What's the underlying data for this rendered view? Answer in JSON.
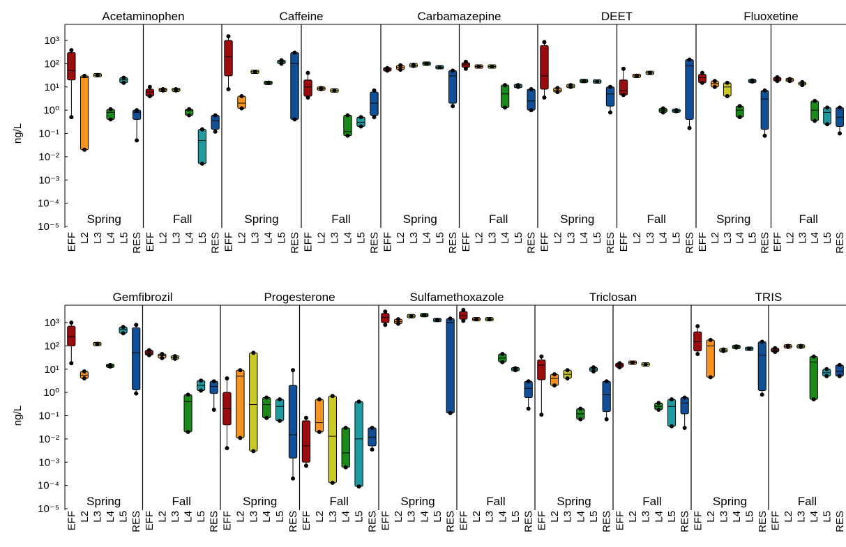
{
  "ylabel": "ng/L",
  "season_labels": [
    "Spring",
    "Fall"
  ],
  "site_labels": [
    "EFF",
    "L2",
    "L3",
    "L4",
    "L5",
    "RES"
  ],
  "yticks": [
    "10³",
    "10²",
    "10¹",
    "10⁰",
    "10⁻¹",
    "10⁻²",
    "10⁻³",
    "10⁻⁴",
    "10⁻⁵"
  ],
  "colors": {
    "EFF": "#9b0c0f",
    "L2": "#f59222",
    "L3": "#cbc92a",
    "L4": "#1c8a1b",
    "L5": "#1e9ba0",
    "RES": "#114f96"
  },
  "chart_data": {
    "type": "box",
    "yscale": "log",
    "ylim": [
      1e-05,
      3000
    ],
    "ylabel": "ng/L",
    "groups": [
      "Spring",
      "Fall"
    ],
    "categories": [
      "EFF",
      "L2",
      "L3",
      "L4",
      "L5",
      "RES"
    ],
    "compounds": [
      {
        "name": "Acetaminophen",
        "spring": [
          [
            0.5,
            20,
            50,
            300,
            380
          ],
          [
            0.02,
            0.02,
            25,
            30,
            30
          ],
          [
            32,
            32,
            32,
            32,
            32
          ],
          [
            0.4,
            0.4,
            0.8,
            1.1,
            1.1
          ],
          [
            15,
            15,
            20,
            25,
            25
          ],
          [
            0.05,
            0.4,
            0.8,
            1.0,
            1.0
          ]
        ],
        "fall": [
          [
            4,
            4,
            6,
            8,
            10
          ],
          [
            7,
            7,
            7.5,
            8,
            8
          ],
          [
            7,
            7,
            7.5,
            8,
            8
          ],
          [
            0.6,
            0.6,
            1.0,
            1.1,
            1.1
          ],
          [
            0.005,
            0.005,
            0.05,
            0.15,
            0.15
          ],
          [
            0.12,
            0.15,
            0.35,
            0.6,
            0.6
          ]
        ]
      },
      {
        "name": "Caffeine",
        "spring": [
          [
            8,
            30,
            200,
            1000,
            1500
          ],
          [
            1.2,
            1.2,
            2.0,
            4.0,
            4.0
          ],
          [
            45,
            45,
            45,
            45,
            45
          ],
          [
            15,
            15,
            15,
            15,
            15
          ],
          [
            100,
            100,
            120,
            140,
            140
          ],
          [
            0.4,
            0.4,
            100,
            300,
            300
          ]
        ],
        "fall": [
          [
            3.5,
            4,
            10,
            20,
            40
          ],
          [
            8,
            8,
            8.5,
            9,
            9
          ],
          [
            7,
            7,
            7,
            7,
            7
          ],
          [
            0.08,
            0.08,
            0.12,
            0.6,
            0.6
          ],
          [
            0.2,
            0.2,
            0.3,
            0.5,
            0.5
          ],
          [
            0.5,
            0.6,
            2,
            6,
            7
          ]
        ]
      },
      {
        "name": "Carbamazepine",
        "spring": [
          [
            50,
            50,
            58,
            65,
            65
          ],
          [
            55,
            55,
            70,
            85,
            85
          ],
          [
            80,
            80,
            85,
            90,
            90
          ],
          [
            100,
            100,
            100,
            100,
            100
          ],
          [
            70,
            70,
            70,
            70,
            70
          ],
          [
            1.5,
            2,
            30,
            50,
            50
          ]
        ],
        "fall": [
          [
            60,
            70,
            90,
            110,
            120
          ],
          [
            75,
            75,
            75,
            75,
            75
          ],
          [
            75,
            75,
            75,
            75,
            75
          ],
          [
            1.3,
            1.3,
            5,
            12,
            12
          ],
          [
            10,
            10,
            11,
            12,
            12
          ],
          [
            1.0,
            1.0,
            2.5,
            8,
            8
          ]
        ]
      },
      {
        "name": "DEET",
        "spring": [
          [
            3.5,
            8,
            30,
            600,
            850
          ],
          [
            6,
            6,
            7,
            9,
            9
          ],
          [
            10,
            10,
            11,
            12,
            12
          ],
          [
            18,
            18,
            18,
            18,
            18
          ],
          [
            17,
            17,
            17,
            17,
            17
          ],
          [
            0.8,
            1.5,
            5,
            10,
            10
          ]
        ],
        "fall": [
          [
            4.5,
            4.5,
            7,
            20,
            60
          ],
          [
            30,
            30,
            30,
            30,
            30
          ],
          [
            40,
            40,
            40,
            40,
            40
          ],
          [
            0.8,
            0.8,
            1.0,
            1.2,
            1.2
          ],
          [
            0.9,
            0.9,
            0.95,
            1.0,
            1.0
          ],
          [
            0.17,
            0.4,
            80,
            150,
            150
          ]
        ]
      },
      {
        "name": "Fluoxetine",
        "spring": [
          [
            15,
            15,
            25,
            35,
            40
          ],
          [
            10,
            10,
            14,
            18,
            18
          ],
          [
            4,
            4,
            10,
            15,
            15
          ],
          [
            0.5,
            0.5,
            1.0,
            1.5,
            1.5
          ],
          [
            17,
            17,
            18,
            19,
            19
          ],
          [
            0.08,
            0.15,
            3,
            7,
            7
          ]
        ],
        "fall": [
          [
            18,
            18,
            22,
            26,
            26
          ],
          [
            18,
            18,
            20,
            22,
            22
          ],
          [
            12,
            12,
            14,
            16,
            16
          ],
          [
            0.35,
            0.35,
            1.0,
            2.5,
            2.5
          ],
          [
            0.25,
            0.25,
            0.8,
            1.3,
            1.3
          ],
          [
            0.1,
            0.2,
            0.5,
            1.3,
            1.3
          ]
        ]
      },
      {
        "name": "Gemfibrozil",
        "spring": [
          [
            18,
            100,
            250,
            700,
            1000
          ],
          [
            4,
            4,
            5.5,
            8,
            8
          ],
          [
            120,
            120,
            120,
            120,
            120
          ],
          [
            13,
            13,
            14,
            15,
            15
          ],
          [
            350,
            350,
            500,
            650,
            650
          ],
          [
            0.9,
            1.3,
            50,
            600,
            800
          ]
        ],
        "fall": [
          [
            40,
            40,
            50,
            65,
            65
          ],
          [
            30,
            30,
            38,
            45,
            45
          ],
          [
            28,
            28,
            32,
            36,
            36
          ],
          [
            0.02,
            0.02,
            0.4,
            0.8,
            0.8
          ],
          [
            1.2,
            1.2,
            2.0,
            3.2,
            3.2
          ],
          [
            0.18,
            0.9,
            1.8,
            3.0,
            3.0
          ]
        ]
      },
      {
        "name": "Progesterone",
        "spring": [
          [
            0.004,
            0.04,
            0.2,
            1.0,
            4
          ],
          [
            0.011,
            0.011,
            5,
            9,
            9
          ],
          [
            0.003,
            0.003,
            0.3,
            50,
            50
          ],
          [
            0.08,
            0.08,
            0.3,
            0.6,
            0.6
          ],
          [
            0.06,
            0.06,
            0.25,
            0.5,
            0.5
          ],
          [
            0.0002,
            0.0015,
            0.015,
            2.0,
            9
          ]
        ],
        "fall": [
          [
            0.0007,
            0.001,
            0.005,
            0.06,
            0.08
          ],
          [
            0.02,
            0.02,
            0.05,
            0.5,
            0.5
          ],
          [
            0.00013,
            0.00013,
            0.013,
            0.7,
            0.7
          ],
          [
            0.0006,
            0.0006,
            0.0025,
            0.03,
            0.03
          ],
          [
            9e-05,
            9e-05,
            0.01,
            0.4,
            0.4
          ],
          [
            0.0035,
            0.005,
            0.012,
            0.03,
            0.03
          ]
        ]
      },
      {
        "name": "Sulfamethoxazole",
        "spring": [
          [
            800,
            1000,
            1700,
            2500,
            3000
          ],
          [
            900,
            900,
            1100,
            1400,
            1400
          ],
          [
            1900,
            1900,
            1900,
            1900,
            1900
          ],
          [
            2100,
            2100,
            2100,
            2100,
            2100
          ],
          [
            1300,
            1300,
            1300,
            1300,
            1300
          ],
          [
            0.13,
            0.13,
            1000,
            1500,
            1500
          ]
        ],
        "fall": [
          [
            1200,
            1400,
            2000,
            3000,
            3500
          ],
          [
            1400,
            1400,
            1400,
            1400,
            1400
          ],
          [
            1400,
            1400,
            1400,
            1400,
            1400
          ],
          [
            20,
            20,
            30,
            45,
            45
          ],
          [
            9,
            9,
            10,
            11,
            11
          ],
          [
            0.2,
            0.6,
            1.5,
            3,
            3
          ]
        ]
      },
      {
        "name": "Triclosan",
        "spring": [
          [
            0.11,
            3.5,
            15,
            25,
            35
          ],
          [
            2,
            2,
            4,
            6,
            6
          ],
          [
            4,
            4,
            6,
            9,
            9
          ],
          [
            0.07,
            0.07,
            0.12,
            0.2,
            0.2
          ],
          [
            8,
            8,
            10,
            12,
            12
          ],
          [
            0.07,
            0.15,
            0.8,
            3,
            3
          ]
        ],
        "fall": [
          [
            12,
            12,
            15,
            18,
            18
          ],
          [
            19,
            19,
            19,
            19,
            19
          ],
          [
            16,
            16,
            16,
            16,
            16
          ],
          [
            0.18,
            0.18,
            0.25,
            0.35,
            0.35
          ],
          [
            0.035,
            0.035,
            0.25,
            0.5,
            0.5
          ],
          [
            0.03,
            0.12,
            0.35,
            0.6,
            0.6
          ]
        ]
      },
      {
        "name": "TRIS",
        "spring": [
          [
            45,
            60,
            150,
            400,
            700
          ],
          [
            4.5,
            4.5,
            100,
            180,
            180
          ],
          [
            60,
            60,
            65,
            70,
            70
          ],
          [
            85,
            85,
            90,
            95,
            95
          ],
          [
            75,
            75,
            75,
            75,
            75
          ],
          [
            0.8,
            1.2,
            40,
            150,
            150
          ]
        ],
        "fall": [
          [
            55,
            55,
            65,
            80,
            80
          ],
          [
            90,
            90,
            95,
            100,
            100
          ],
          [
            90,
            90,
            95,
            100,
            100
          ],
          [
            0.5,
            0.5,
            20,
            35,
            35
          ],
          [
            5,
            5,
            7,
            10,
            10
          ],
          [
            5,
            5,
            8,
            15,
            15
          ]
        ]
      }
    ]
  }
}
